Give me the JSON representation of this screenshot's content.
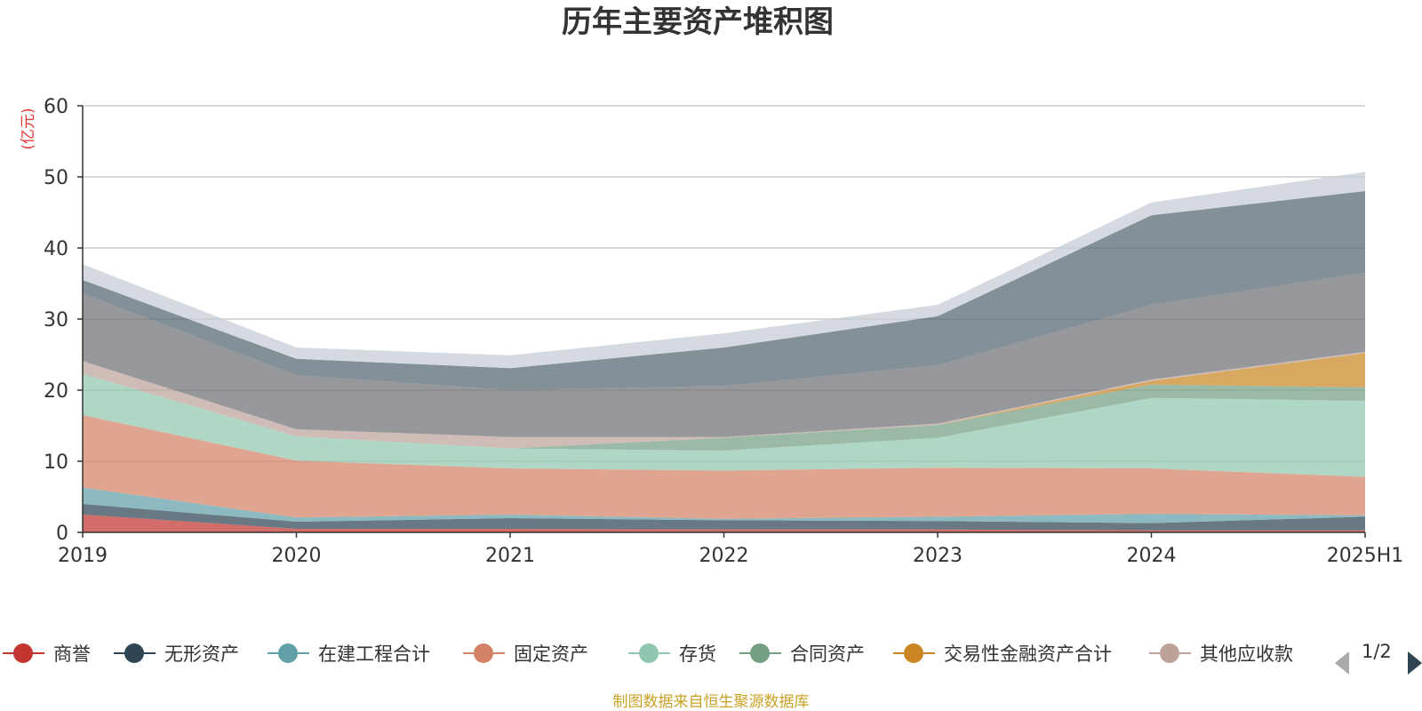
{
  "chart_data": {
    "type": "area",
    "stacked": true,
    "title": "历年主要资产堆积图",
    "unit_label": "(亿元)",
    "categories": [
      "2019",
      "2020",
      "2021",
      "2022",
      "2023",
      "2024",
      "2025H1"
    ],
    "ylim": [
      0,
      60
    ],
    "yticks": [
      "0",
      "10",
      "20",
      "30",
      "40",
      "50",
      "60"
    ],
    "grid": true,
    "series": [
      {
        "name": "商誉",
        "color": "#c23531",
        "values": [
          2.5,
          0.5,
          0.5,
          0.4,
          0.4,
          0.3,
          0.3
        ]
      },
      {
        "name": "无形资产",
        "color": "#2f4554",
        "values": [
          1.5,
          1.0,
          1.5,
          1.3,
          1.2,
          1.0,
          1.9
        ]
      },
      {
        "name": "在建工程合计",
        "color": "#61a0a8",
        "values": [
          2.3,
          0.6,
          0.5,
          0.2,
          0.6,
          1.3,
          0.2
        ]
      },
      {
        "name": "固定资产",
        "color": "#d48265",
        "values": [
          10.2,
          8.0,
          6.5,
          6.8,
          6.9,
          6.4,
          5.4
        ]
      },
      {
        "name": "存货",
        "color": "#91c7ae",
        "values": [
          5.8,
          3.4,
          2.8,
          2.8,
          4.2,
          9.9,
          10.7
        ]
      },
      {
        "name": "合同资产",
        "color": "#749f83",
        "values": [
          0.0,
          0.0,
          0.0,
          1.8,
          1.8,
          1.9,
          1.9
        ]
      },
      {
        "name": "交易性金融资产合计",
        "color": "#ca8622",
        "values": [
          0.0,
          0.0,
          0.0,
          0.0,
          0.0,
          0.5,
          4.8
        ]
      },
      {
        "name": "其他应收款",
        "color": "#bda29a",
        "values": [
          1.8,
          1.0,
          1.6,
          0.1,
          0.2,
          0.2,
          0.2
        ]
      },
      {
        "name": "",
        "color": "#6e7074",
        "values": [
          9.5,
          7.6,
          6.6,
          7.2,
          8.2,
          10.5,
          11.1
        ]
      },
      {
        "name": "",
        "color": "#546570",
        "values": [
          1.9,
          2.3,
          3.1,
          5.4,
          6.9,
          12.6,
          11.5
        ]
      },
      {
        "name": "",
        "color": "#c4ccd3",
        "values": [
          2.2,
          1.6,
          1.8,
          2.0,
          1.6,
          1.8,
          2.7
        ]
      }
    ]
  },
  "legend": {
    "items": [
      "商誉",
      "无形资产",
      "在建工程合计",
      "固定资产",
      "存货",
      "合同资产",
      "交易性金融资产合计",
      "其他应收款"
    ],
    "page": "1/2",
    "colors": {
      "prev": "#aaaaaa",
      "next": "#2f4554"
    }
  },
  "source": "制图数据来自恒生聚源数据库"
}
